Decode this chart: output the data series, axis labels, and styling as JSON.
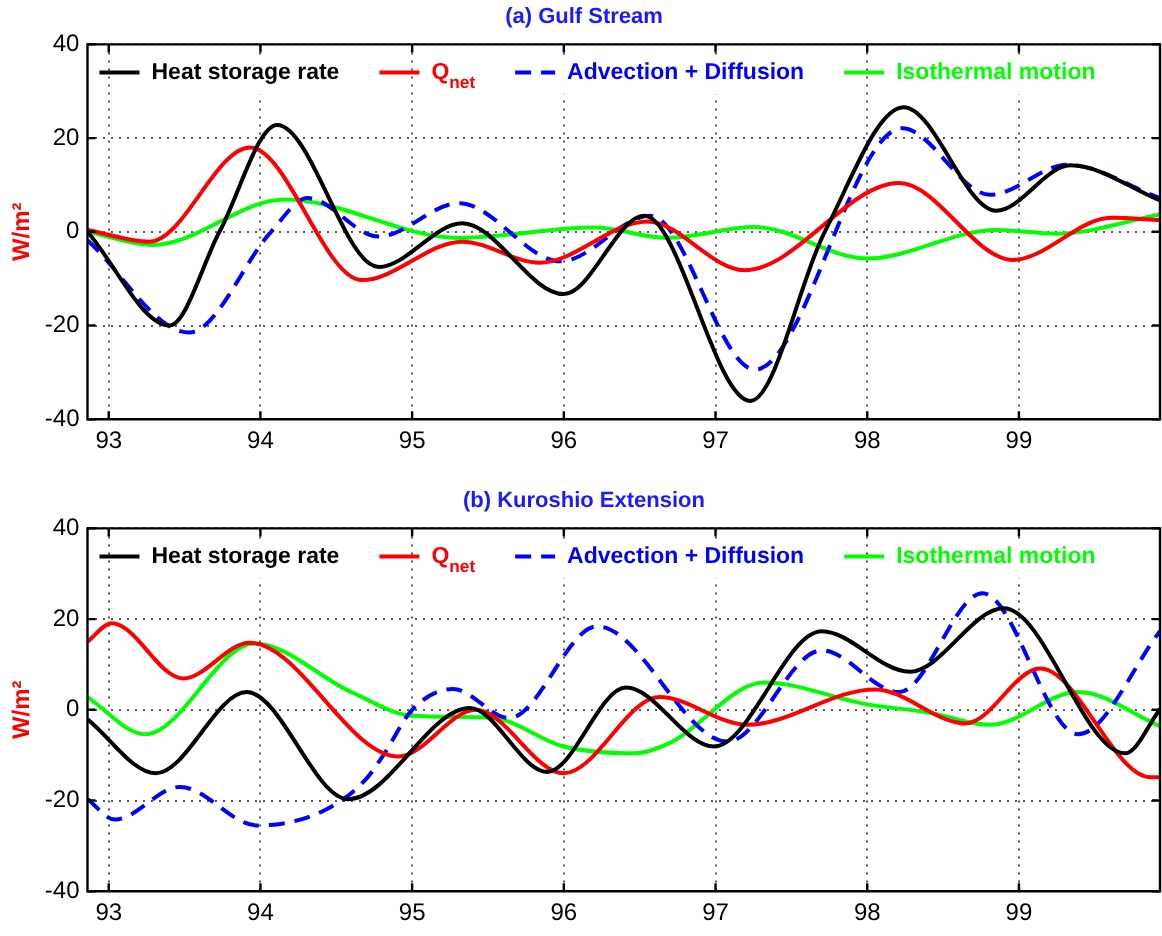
{
  "chart_data": [
    {
      "type": "line",
      "title": "(a) Gulf Stream",
      "ylabel": "W/m²",
      "xlim": [
        92.86,
        99.93
      ],
      "xticks": [
        93,
        94,
        95,
        96,
        97,
        98,
        99
      ],
      "ylim": [
        -40,
        40
      ],
      "yticks": [
        -40,
        -20,
        0,
        20,
        40
      ],
      "grid": true,
      "legend": "top",
      "series": [
        {
          "name": "Heat storage rate",
          "color": "#000000",
          "line_style": "solid",
          "x": [
            92.86,
            93.4,
            93.73,
            94.11,
            94.78,
            95.33,
            96.0,
            96.53,
            97.23,
            97.72,
            98.24,
            98.85,
            99.34,
            99.93
          ],
          "values": [
            0,
            -20,
            0,
            22.8,
            -7.5,
            1.8,
            -13.3,
            3.4,
            -36.1,
            0,
            26.6,
            4.5,
            14.2,
            6.7
          ]
        },
        {
          "name": "Q$_{net}$",
          "color": "#ff0000",
          "line_style": "solid",
          "x": [
            92.86,
            93.27,
            93.93,
            94.67,
            95.33,
            95.84,
            96.55,
            97.19,
            98.21,
            98.96,
            99.61,
            99.93
          ],
          "values": [
            0.4,
            -2.1,
            18,
            -10.3,
            -2.1,
            -6.6,
            2.2,
            -8.2,
            10.4,
            -6,
            3,
            2.5
          ]
        },
        {
          "name": "Advection + Diffusion",
          "color": "#0000ff",
          "line_style": "dashed",
          "x": [
            92.86,
            93.53,
            94.07,
            94.31,
            94.78,
            95.31,
            95.98,
            96.57,
            97.26,
            98.23,
            98.81,
            99.32,
            99.93
          ],
          "values": [
            -1.8,
            -21.5,
            0,
            7.2,
            -1,
            6.1,
            -6.3,
            3.4,
            -29.4,
            22.1,
            7.9,
            14.3,
            7.2
          ]
        },
        {
          "name": "Isothermal motion",
          "color": "#00ff00",
          "line_style": "solid",
          "x": [
            92.86,
            93.29,
            94.16,
            95.31,
            96.2,
            96.68,
            97.26,
            98.0,
            98.85,
            99.25,
            99.93
          ],
          "values": [
            0,
            -2.8,
            6.9,
            -1.3,
            0.9,
            -1.3,
            1,
            -5.7,
            0.4,
            -0.4,
            3.7
          ]
        }
      ]
    },
    {
      "type": "line",
      "title": "(b) Kuroshio Extension",
      "ylabel": "W/m²",
      "xlim": [
        92.86,
        99.93
      ],
      "xticks": [
        93,
        94,
        95,
        96,
        97,
        98,
        99
      ],
      "ylim": [
        -40,
        40
      ],
      "yticks": [
        -40,
        -20,
        0,
        20,
        40
      ],
      "grid": true,
      "legend": "top",
      "series": [
        {
          "name": "Heat storage rate",
          "color": "#000000",
          "line_style": "solid",
          "x": [
            92.86,
            93.31,
            93.91,
            94.58,
            95.38,
            95.89,
            96.41,
            96.99,
            97.7,
            98.28,
            98.9,
            99.7,
            99.93
          ],
          "values": [
            -2.1,
            -14,
            3.9,
            -19.7,
            0.4,
            -13.7,
            4.9,
            -8.1,
            17.3,
            8.4,
            22.4,
            -9.6,
            0.1
          ]
        },
        {
          "name": "Q$_{net}$",
          "color": "#ff0000",
          "line_style": "solid",
          "x": [
            92.86,
            93.02,
            93.49,
            93.93,
            94.91,
            95.42,
            96.0,
            96.63,
            97.21,
            98.05,
            98.65,
            99.14,
            99.87,
            99.93
          ],
          "values": [
            15,
            19.1,
            6.9,
            14.8,
            -10.3,
            0,
            -14,
            2.8,
            -3.3,
            4.5,
            -3,
            9.1,
            -14.9,
            -14.9
          ]
        },
        {
          "name": "Advection + Diffusion",
          "color": "#0000ff",
          "line_style": "dashed",
          "x": [
            92.86,
            93.04,
            93.47,
            93.98,
            94.42,
            94.69,
            94.82,
            95.0,
            95.27,
            95.64,
            96.22,
            97.08,
            97.7,
            98.21,
            98.76,
            99.39,
            99.93
          ],
          "values": [
            -19.7,
            -24.2,
            -17,
            -25.5,
            -22.2,
            -15.5,
            -9.5,
            0,
            4.6,
            -1.8,
            18.4,
            -7,
            13.1,
            3.9,
            25.7,
            -5.4,
            17.3
          ]
        },
        {
          "name": "Isothermal motion",
          "color": "#00ff00",
          "line_style": "solid",
          "x": [
            92.86,
            93.24,
            93.96,
            94.6,
            95.0,
            95.53,
            96.0,
            96.47,
            96.7,
            97.32,
            98.0,
            98.4,
            98.81,
            99.39,
            99.93
          ],
          "values": [
            2.8,
            -5.4,
            14.6,
            3.9,
            -1.3,
            -1.8,
            -8.1,
            -9.6,
            -7.3,
            6,
            1.2,
            -0.6,
            -3.3,
            3.9,
            -3.6
          ]
        }
      ]
    }
  ]
}
